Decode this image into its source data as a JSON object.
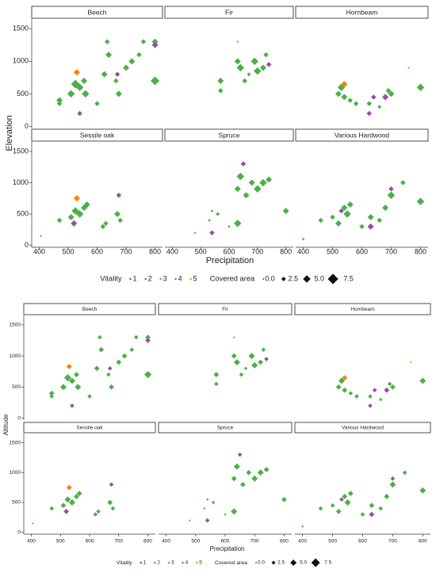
{
  "chart_data": [
    {
      "type": "scatter",
      "y_label": "Elevation",
      "x_label": "Precipitation",
      "xlim": [
        385,
        815
      ],
      "ylim": [
        -30,
        1600
      ],
      "xticks": [
        400,
        500,
        600,
        700,
        800
      ],
      "yticks": [
        0,
        500,
        1000,
        1500
      ],
      "vitality": {
        "title": "Vitality",
        "levels": [
          1,
          2,
          3,
          4,
          5
        ],
        "colors": [
          "#e41a1c",
          "#377eb8",
          "#4daf4a",
          "#984ea3",
          "#ff7f00"
        ]
      },
      "size_legend": {
        "title": "Covered area",
        "values": [
          {
            "value": 0,
            "label": "0.0"
          },
          2.5,
          {
            "value": 5,
            "label": "5.0"
          },
          7.5
        ]
      },
      "facets": [
        {
          "name": "Beech",
          "x": [
            470,
            470,
            510,
            525,
            540,
            555,
            560,
            600,
            625,
            635,
            640,
            665,
            675,
            700,
            720,
            745,
            760,
            800,
            800,
            530,
            540,
            670,
            800
          ],
          "y": [
            400,
            350,
            500,
            650,
            600,
            700,
            500,
            350,
            800,
            1300,
            1100,
            700,
            500,
            900,
            1000,
            1100,
            1300,
            1300,
            700,
            830,
            200,
            800,
            1250
          ],
          "size": [
            4,
            3,
            5,
            6,
            5,
            4,
            5,
            3,
            4,
            3,
            4,
            3,
            4,
            4,
            4,
            3,
            3,
            4,
            6,
            4,
            3,
            3,
            4
          ],
          "vitality": [
            3,
            3,
            3,
            3,
            3,
            3,
            3,
            3,
            3,
            3,
            3,
            3,
            3,
            3,
            3,
            3,
            3,
            3,
            3,
            5,
            4,
            4,
            4
          ]
        },
        {
          "name": "Fir",
          "x": [
            570,
            570,
            630,
            640,
            655,
            670,
            690,
            700,
            720,
            730,
            740,
            630
          ],
          "y": [
            700,
            550,
            1000,
            900,
            700,
            800,
            1000,
            850,
            900,
            1100,
            950,
            1300
          ],
          "size": [
            4,
            3,
            4,
            5,
            3,
            2,
            5,
            5,
            4,
            3,
            3,
            0.5
          ],
          "vitality": [
            3,
            3,
            3,
            3,
            3,
            3,
            3,
            3,
            3,
            3,
            4,
            3
          ]
        },
        {
          "name": "Hornbeam",
          "x": [
            520,
            530,
            540,
            560,
            580,
            625,
            640,
            660,
            680,
            690,
            700,
            760,
            800,
            540,
            625
          ],
          "y": [
            500,
            600,
            450,
            400,
            350,
            350,
            450,
            300,
            450,
            550,
            500,
            900,
            600,
            650,
            200
          ],
          "size": [
            4,
            5,
            4,
            3,
            3,
            3,
            3,
            2,
            4,
            3,
            4,
            0.5,
            5,
            4,
            3
          ],
          "vitality": [
            3,
            3,
            3,
            3,
            3,
            3,
            4,
            3,
            4,
            3,
            3,
            5,
            3,
            5,
            4
          ]
        },
        {
          "name": "Sessile oak",
          "x": [
            405,
            470,
            510,
            525,
            540,
            555,
            565,
            620,
            630,
            670,
            680,
            530,
            675,
            520
          ],
          "y": [
            150,
            400,
            450,
            550,
            500,
            600,
            650,
            300,
            350,
            500,
            400,
            750,
            800,
            350
          ],
          "size": [
            0.5,
            3,
            4,
            5,
            5,
            4,
            4,
            3,
            3,
            4,
            3,
            4,
            3,
            4
          ],
          "vitality": [
            3,
            3,
            3,
            3,
            3,
            3,
            3,
            3,
            3,
            3,
            3,
            5,
            4,
            4
          ]
        },
        {
          "name": "Spruce",
          "x": [
            480,
            530,
            540,
            560,
            600,
            630,
            640,
            660,
            680,
            700,
            720,
            740,
            800,
            650,
            540,
            630
          ],
          "y": [
            200,
            400,
            550,
            500,
            300,
            900,
            1100,
            800,
            1000,
            900,
            1000,
            1050,
            550,
            1300,
            200,
            350
          ],
          "size": [
            0.5,
            1,
            1,
            2,
            1,
            4,
            5,
            4,
            4,
            5,
            5,
            4,
            4,
            3,
            3,
            5
          ],
          "vitality": [
            3,
            3,
            3,
            3,
            3,
            3,
            3,
            3,
            3,
            3,
            3,
            3,
            3,
            4,
            4,
            3
          ]
        },
        {
          "name": "Various Hardwood",
          "x": [
            400,
            460,
            500,
            520,
            540,
            550,
            560,
            600,
            630,
            660,
            680,
            700,
            740,
            800,
            630,
            700,
            530
          ],
          "y": [
            100,
            400,
            450,
            350,
            600,
            500,
            650,
            300,
            450,
            400,
            600,
            800,
            1000,
            700,
            300,
            900,
            550
          ],
          "size": [
            1,
            3,
            3,
            4,
            4,
            5,
            4,
            3,
            4,
            3,
            4,
            5,
            3,
            5,
            4,
            3,
            3
          ],
          "vitality": [
            3,
            3,
            3,
            3,
            3,
            3,
            3,
            3,
            3,
            3,
            3,
            3,
            3,
            3,
            4,
            4,
            4
          ]
        }
      ]
    },
    {
      "type": "scatter",
      "y_label": "Altitude",
      "x_label": "Precipitation",
      "xlim": [
        385,
        815
      ],
      "ylim": [
        -30,
        1600
      ],
      "xticks": [
        400,
        500,
        600,
        700,
        800
      ],
      "yticks": [
        0,
        500,
        1000,
        1500
      ],
      "vitality": {
        "title": "Vitality",
        "levels": [
          1,
          2,
          3,
          4,
          5
        ],
        "colors": [
          "#e41a1c",
          "#377eb8",
          "#4daf4a",
          "#984ea3",
          "#ff7f00"
        ]
      },
      "size_legend": {
        "title": "Covered area",
        "values": [
          {
            "value": 0,
            "label": "0.0"
          },
          2.5,
          {
            "value": 5,
            "label": "5.0"
          },
          7.5
        ]
      },
      "facets": [
        {
          "name": "Beech",
          "x": [
            470,
            470,
            510,
            525,
            540,
            555,
            560,
            600,
            625,
            635,
            640,
            665,
            675,
            700,
            720,
            745,
            760,
            800,
            800,
            530,
            540,
            670,
            800
          ],
          "y": [
            400,
            350,
            500,
            650,
            600,
            700,
            500,
            350,
            800,
            1300,
            1100,
            700,
            500,
            900,
            1000,
            1100,
            1300,
            1300,
            700,
            830,
            200,
            800,
            1250
          ],
          "size": [
            4,
            3,
            5,
            6,
            5,
            4,
            5,
            3,
            4,
            3,
            4,
            3,
            4,
            4,
            4,
            3,
            3,
            4,
            6,
            4,
            3,
            3,
            4
          ],
          "vitality": [
            3,
            3,
            3,
            3,
            3,
            3,
            3,
            3,
            3,
            3,
            3,
            3,
            3,
            3,
            3,
            3,
            3,
            3,
            3,
            5,
            4,
            4,
            4
          ]
        },
        {
          "name": "Fir",
          "x": [
            570,
            570,
            630,
            640,
            655,
            670,
            690,
            700,
            720,
            730,
            740,
            630
          ],
          "y": [
            700,
            550,
            1000,
            900,
            700,
            800,
            1000,
            850,
            900,
            1100,
            950,
            1300
          ],
          "size": [
            4,
            3,
            4,
            5,
            3,
            2,
            5,
            5,
            4,
            3,
            3,
            0.5
          ],
          "vitality": [
            3,
            3,
            3,
            3,
            3,
            3,
            3,
            3,
            3,
            3,
            4,
            3
          ]
        },
        {
          "name": "Hornbeam",
          "x": [
            520,
            530,
            540,
            560,
            580,
            625,
            640,
            660,
            680,
            690,
            700,
            760,
            800,
            540,
            625
          ],
          "y": [
            500,
            600,
            450,
            400,
            350,
            350,
            450,
            300,
            450,
            550,
            500,
            900,
            600,
            650,
            200
          ],
          "size": [
            4,
            5,
            4,
            3,
            3,
            3,
            3,
            2,
            4,
            3,
            4,
            0.5,
            5,
            4,
            3
          ],
          "vitality": [
            3,
            3,
            3,
            3,
            3,
            3,
            4,
            3,
            4,
            3,
            3,
            5,
            3,
            5,
            4
          ]
        },
        {
          "name": "Sessile oak",
          "x": [
            405,
            470,
            510,
            525,
            540,
            555,
            565,
            620,
            630,
            670,
            680,
            530,
            675,
            520
          ],
          "y": [
            150,
            400,
            450,
            550,
            500,
            600,
            650,
            300,
            350,
            500,
            400,
            750,
            800,
            350
          ],
          "size": [
            0.5,
            3,
            4,
            5,
            5,
            4,
            4,
            3,
            3,
            4,
            3,
            4,
            3,
            4
          ],
          "vitality": [
            3,
            3,
            3,
            3,
            3,
            3,
            3,
            3,
            3,
            3,
            3,
            5,
            4,
            4
          ]
        },
        {
          "name": "Spruce",
          "x": [
            480,
            530,
            540,
            560,
            600,
            630,
            640,
            660,
            680,
            700,
            720,
            740,
            800,
            650,
            540,
            630
          ],
          "y": [
            200,
            400,
            550,
            500,
            300,
            900,
            1100,
            800,
            1000,
            900,
            1000,
            1050,
            550,
            1300,
            200,
            350
          ],
          "size": [
            0.5,
            1,
            1,
            2,
            1,
            4,
            5,
            4,
            4,
            5,
            5,
            4,
            4,
            3,
            3,
            5
          ],
          "vitality": [
            3,
            3,
            3,
            3,
            3,
            3,
            3,
            3,
            3,
            3,
            3,
            3,
            3,
            4,
            4,
            3
          ]
        },
        {
          "name": "Various Hardwood",
          "x": [
            400,
            460,
            500,
            520,
            540,
            550,
            560,
            600,
            630,
            660,
            680,
            700,
            740,
            800,
            630,
            700,
            530
          ],
          "y": [
            100,
            400,
            450,
            350,
            600,
            500,
            650,
            300,
            450,
            400,
            600,
            800,
            1000,
            700,
            300,
            900,
            550
          ],
          "size": [
            1,
            3,
            3,
            4,
            4,
            5,
            4,
            3,
            4,
            3,
            4,
            5,
            3,
            5,
            4,
            3,
            3
          ],
          "vitality": [
            3,
            3,
            3,
            3,
            3,
            3,
            3,
            3,
            3,
            3,
            3,
            3,
            3,
            3,
            4,
            4,
            4
          ]
        }
      ]
    }
  ]
}
